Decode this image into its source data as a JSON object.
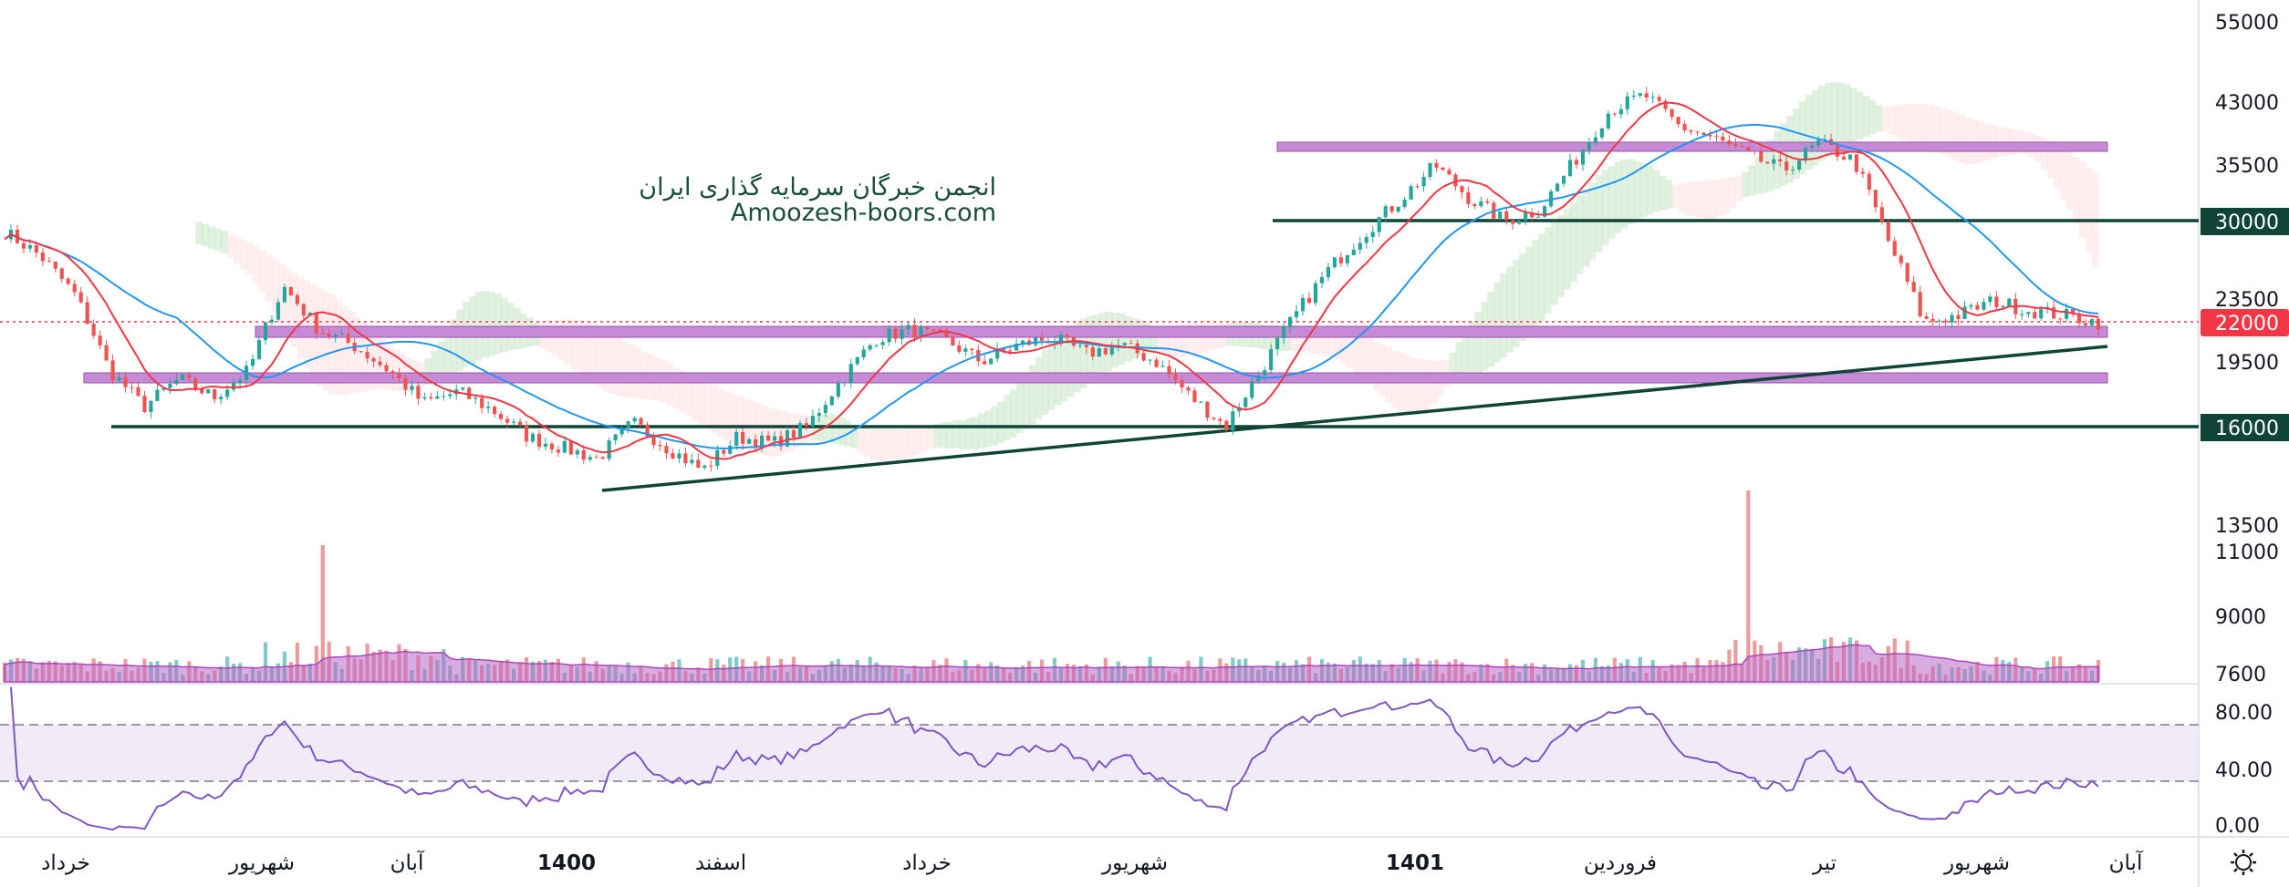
{
  "watermark": {
    "line1": "انجمن خبرگان سرمایه گذاری ایران",
    "line2": "Amoozesh-boors.com"
  },
  "colors": {
    "up": "#26a69a",
    "down": "#ef5350",
    "ma_fast": "#f23645",
    "ma_slow": "#2196f3",
    "zone": "#c68ad6",
    "level": "#0f4436",
    "rsi": "#7e57c2",
    "volume_ma": "#ba68c8",
    "badge_green": "#0f4436",
    "badge_red": "#f23645"
  },
  "price_axis": {
    "labels": [
      "55000",
      "43000",
      "35500",
      "30000",
      "23500",
      "22000",
      "19500",
      "16000",
      "13500",
      "11000",
      "9000",
      "7600"
    ]
  },
  "rsi_axis": {
    "labels": [
      "80.00",
      "40.00",
      "0.00"
    ]
  },
  "time_axis": {
    "labels": [
      "خرداد",
      "شهریور",
      "آبان",
      "1400",
      "اسفند",
      "خرداد",
      "شهریور",
      "1401",
      "فروردین",
      "تیر",
      "شهریور",
      "آبان"
    ],
    "bold": [
      "1400",
      "1401"
    ]
  },
  "chart_data": {
    "type": "candlestick",
    "title": "",
    "horizontal_levels": [
      30000,
      16000
    ],
    "current_price": 22000,
    "zones": [
      {
        "label": "zone-top",
        "from": "mid-1401",
        "to": "end",
        "price_low": 37000,
        "price_high": 38500
      },
      {
        "label": "zone-mid",
        "price_low": 21000,
        "price_high": 22300
      },
      {
        "label": "zone-low",
        "price_low": 18200,
        "price_high": 19000
      }
    ],
    "trendline": {
      "from_price": 13000,
      "to_price": 20000
    },
    "rsi": {
      "upper": 70,
      "lower": 30
    },
    "price_path": [
      29000,
      27000,
      24000,
      19000,
      17000,
      18500,
      17500,
      19000,
      24500,
      21500,
      20500,
      19000,
      17200,
      17800,
      16800,
      15500,
      15000,
      14500,
      16200,
      15000,
      14000,
      15500,
      15200,
      16000,
      18500,
      21000,
      21500,
      20800,
      19500,
      20500,
      21000,
      20000,
      20500,
      19500,
      17500,
      16000,
      19000,
      22500,
      26000,
      29000,
      32000,
      35500,
      32000,
      30000,
      31000,
      36000,
      42000,
      44000,
      40000,
      38500,
      36500,
      35000,
      38000,
      36000,
      28000,
      22000,
      22500,
      23500,
      22800,
      22500,
      22000
    ]
  }
}
